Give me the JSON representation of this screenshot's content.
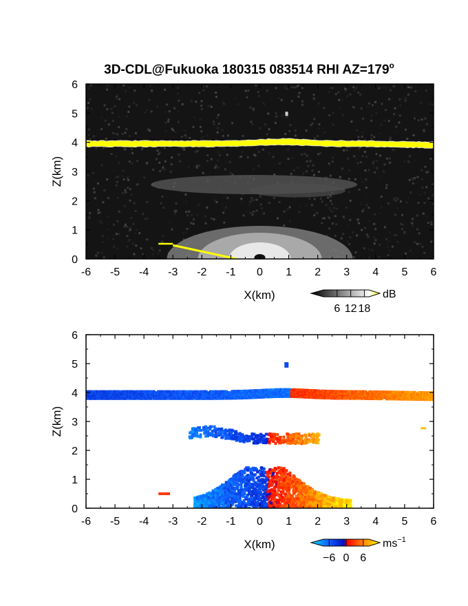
{
  "title_main": "3D-CDL@Fukuoka 180315 083514 RHI AZ=179",
  "title_sup": "o",
  "chart_data": [
    {
      "type": "heatmap",
      "field": "backscatter intensity",
      "xlabel": "X(km)",
      "ylabel": "Z(km)",
      "xlim": [
        -6,
        6
      ],
      "ylim": [
        0,
        6
      ],
      "xticks": [
        "-6",
        "-5",
        "-4",
        "-3",
        "-2",
        "-1",
        "0",
        "1",
        "2",
        "3",
        "4",
        "5",
        "6"
      ],
      "yticks": [
        "0",
        "1",
        "2",
        "3",
        "4",
        "5",
        "6"
      ],
      "background": "#141414",
      "colorbar": {
        "unit": "dB",
        "ticks": [
          6,
          12,
          18
        ],
        "tick_labels": [
          "6",
          "12",
          "18"
        ],
        "range": [
          0,
          20
        ],
        "colors": [
          "#000000",
          "#ffffff",
          "#ffff00"
        ]
      },
      "features": {
        "cloud_layer_z_km": 3.95,
        "cloud_color": "#ffff00",
        "near_field_peak_db": 18,
        "ground_echo_start": [
          -3.5,
          0.52
        ],
        "ground_echo_end": [
          -0.8,
          0.0
        ]
      }
    },
    {
      "type": "heatmap",
      "field": "Doppler radial velocity",
      "xlabel": "X(km)",
      "ylabel": "Z(km)",
      "xlim": [
        -6,
        6
      ],
      "ylim": [
        0,
        6
      ],
      "xticks": [
        "-6",
        "-5",
        "-4",
        "-3",
        "-2",
        "-1",
        "0",
        "1",
        "2",
        "3",
        "4",
        "5",
        "6"
      ],
      "yticks": [
        "0",
        "1",
        "2",
        "3",
        "4",
        "5",
        "6"
      ],
      "background": "#ffffff",
      "colorbar": {
        "unit": "ms",
        "unit_sup": "−1",
        "ticks": [
          -6,
          0,
          6
        ],
        "tick_labels": [
          "−6",
          "0",
          "6"
        ],
        "range": [
          -8,
          8
        ],
        "colors": [
          "#00e0ff",
          "#1060ff",
          "#0010c0",
          "#ff0000",
          "#ff8000",
          "#ffff00"
        ]
      },
      "features": {
        "cloud_layer_z_km": 3.95,
        "velocity_sign_change_x_km": 1.0,
        "mid_layer_z_km": 2.5,
        "boundary_layer_top_km": 1.4
      }
    }
  ]
}
